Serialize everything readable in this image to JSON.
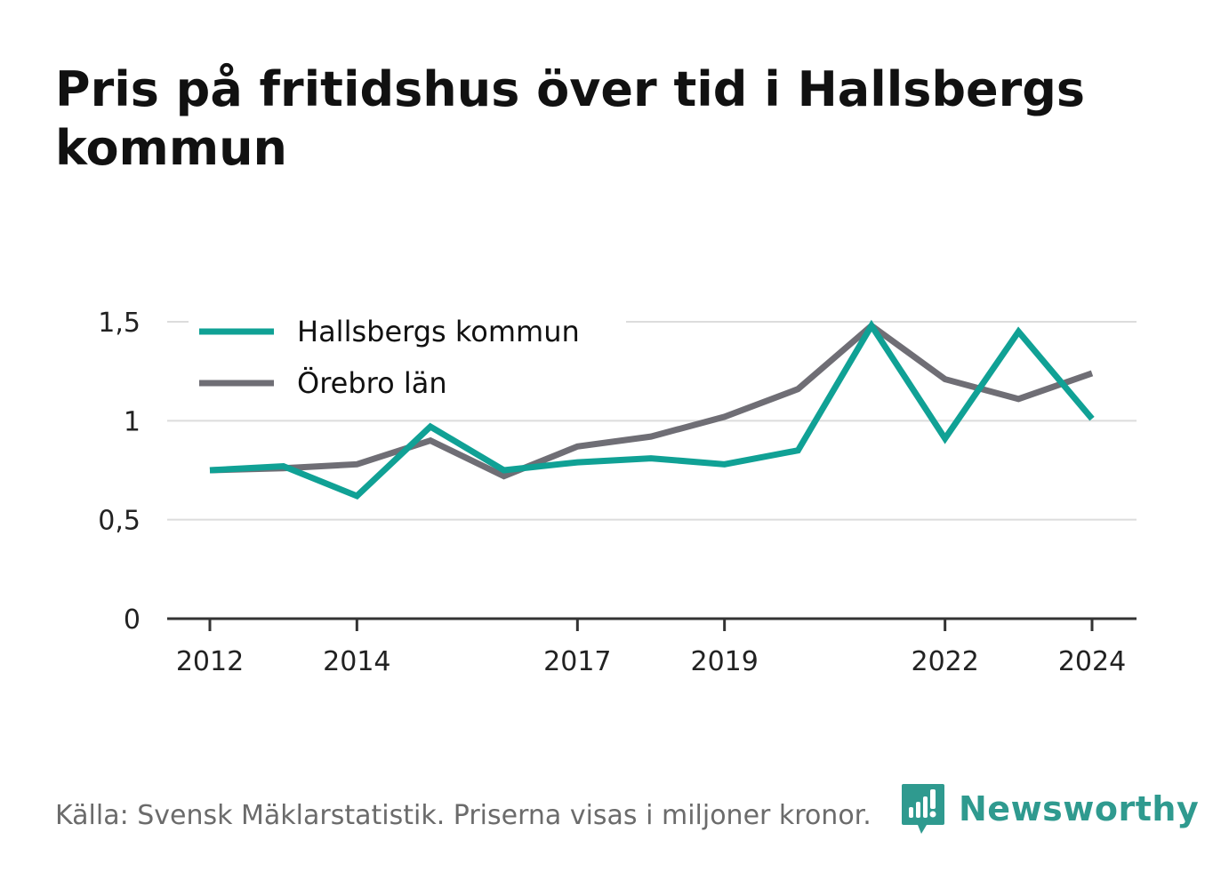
{
  "title": "Pris på fritidshus över tid i Hallsbergs kommun",
  "footer": {
    "source": "Källa: Svensk Mäklarstatistik. Priserna visas i miljoner kronor.",
    "brand": "Newsworthy"
  },
  "colors": {
    "hallsberg": "#10a195",
    "orebro": "#6f6e75",
    "grid": "#dcdcdc",
    "axis": "#333333",
    "brand": "#2f9a8f"
  },
  "icons": [
    "newsworthy-logo-icon"
  ],
  "chart_data": {
    "type": "line",
    "title": "Pris på fritidshus över tid i Hallsbergs kommun",
    "xlabel": "",
    "ylabel": "",
    "x": [
      2012,
      2013,
      2014,
      2015,
      2016,
      2017,
      2018,
      2019,
      2020,
      2021,
      2022,
      2023,
      2024
    ],
    "x_ticks": [
      2012,
      2014,
      2017,
      2019,
      2022,
      2024
    ],
    "x_tick_labels": [
      "2012",
      "2014",
      "2017",
      "2019",
      "2022",
      "2024"
    ],
    "ylim": [
      0,
      1.5
    ],
    "y_ticks": [
      0,
      0.5,
      1,
      1.5
    ],
    "y_tick_labels": [
      "0",
      "0,5",
      "1",
      "1,5"
    ],
    "grid": true,
    "legend_position": "top-left",
    "series": [
      {
        "name": "Hallsbergs kommun",
        "color": "#10a195",
        "values": [
          0.75,
          0.77,
          0.62,
          0.97,
          0.75,
          0.79,
          0.81,
          0.78,
          0.85,
          1.48,
          0.91,
          1.45,
          1.01
        ]
      },
      {
        "name": "Örebro län",
        "color": "#6f6e75",
        "values": [
          0.75,
          0.76,
          0.78,
          0.9,
          0.72,
          0.87,
          0.92,
          1.02,
          1.16,
          1.48,
          1.21,
          1.11,
          1.24
        ]
      }
    ]
  }
}
